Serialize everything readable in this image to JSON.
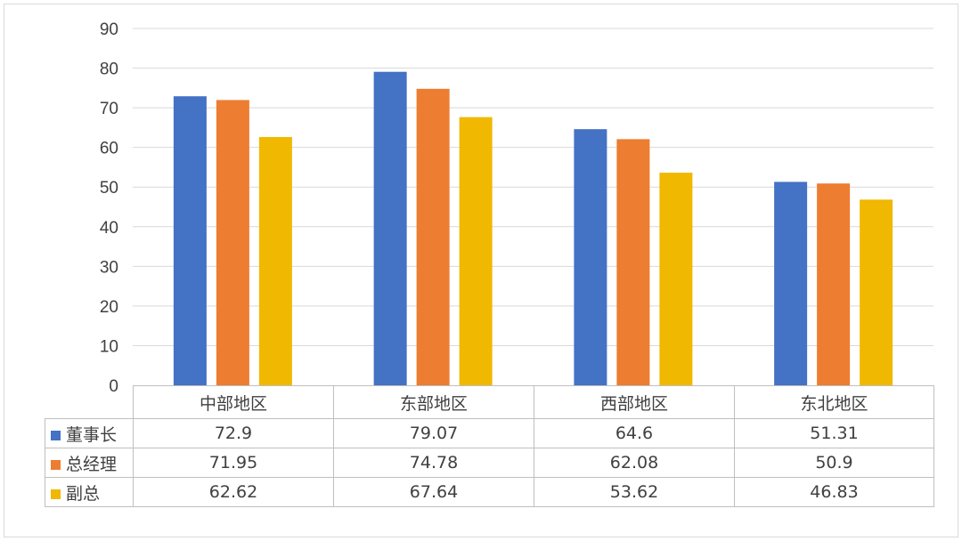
{
  "chart_data": {
    "type": "bar",
    "categories": [
      "中部地区",
      "东部地区",
      "西部地区",
      "东北地区"
    ],
    "series": [
      {
        "name": "董事长",
        "color": "#4472c4",
        "values": [
          72.9,
          79.07,
          64.6,
          51.31
        ]
      },
      {
        "name": "总经理",
        "color": "#ed7d31",
        "values": [
          71.95,
          74.78,
          62.08,
          50.9
        ]
      },
      {
        "name": "副总",
        "color": "#f0b800",
        "values": [
          62.62,
          67.64,
          53.62,
          46.83
        ]
      }
    ],
    "ylim": [
      0,
      90
    ],
    "yticks": [
      0,
      10,
      20,
      30,
      40,
      50,
      60,
      70,
      80,
      90
    ],
    "grid": true,
    "legend": "data-table-below",
    "title": "",
    "xlabel": "",
    "ylabel": ""
  },
  "colors": {
    "grid": "#d9d9d9",
    "axis_text": "#404040",
    "table_border": "#bfbfbf"
  }
}
